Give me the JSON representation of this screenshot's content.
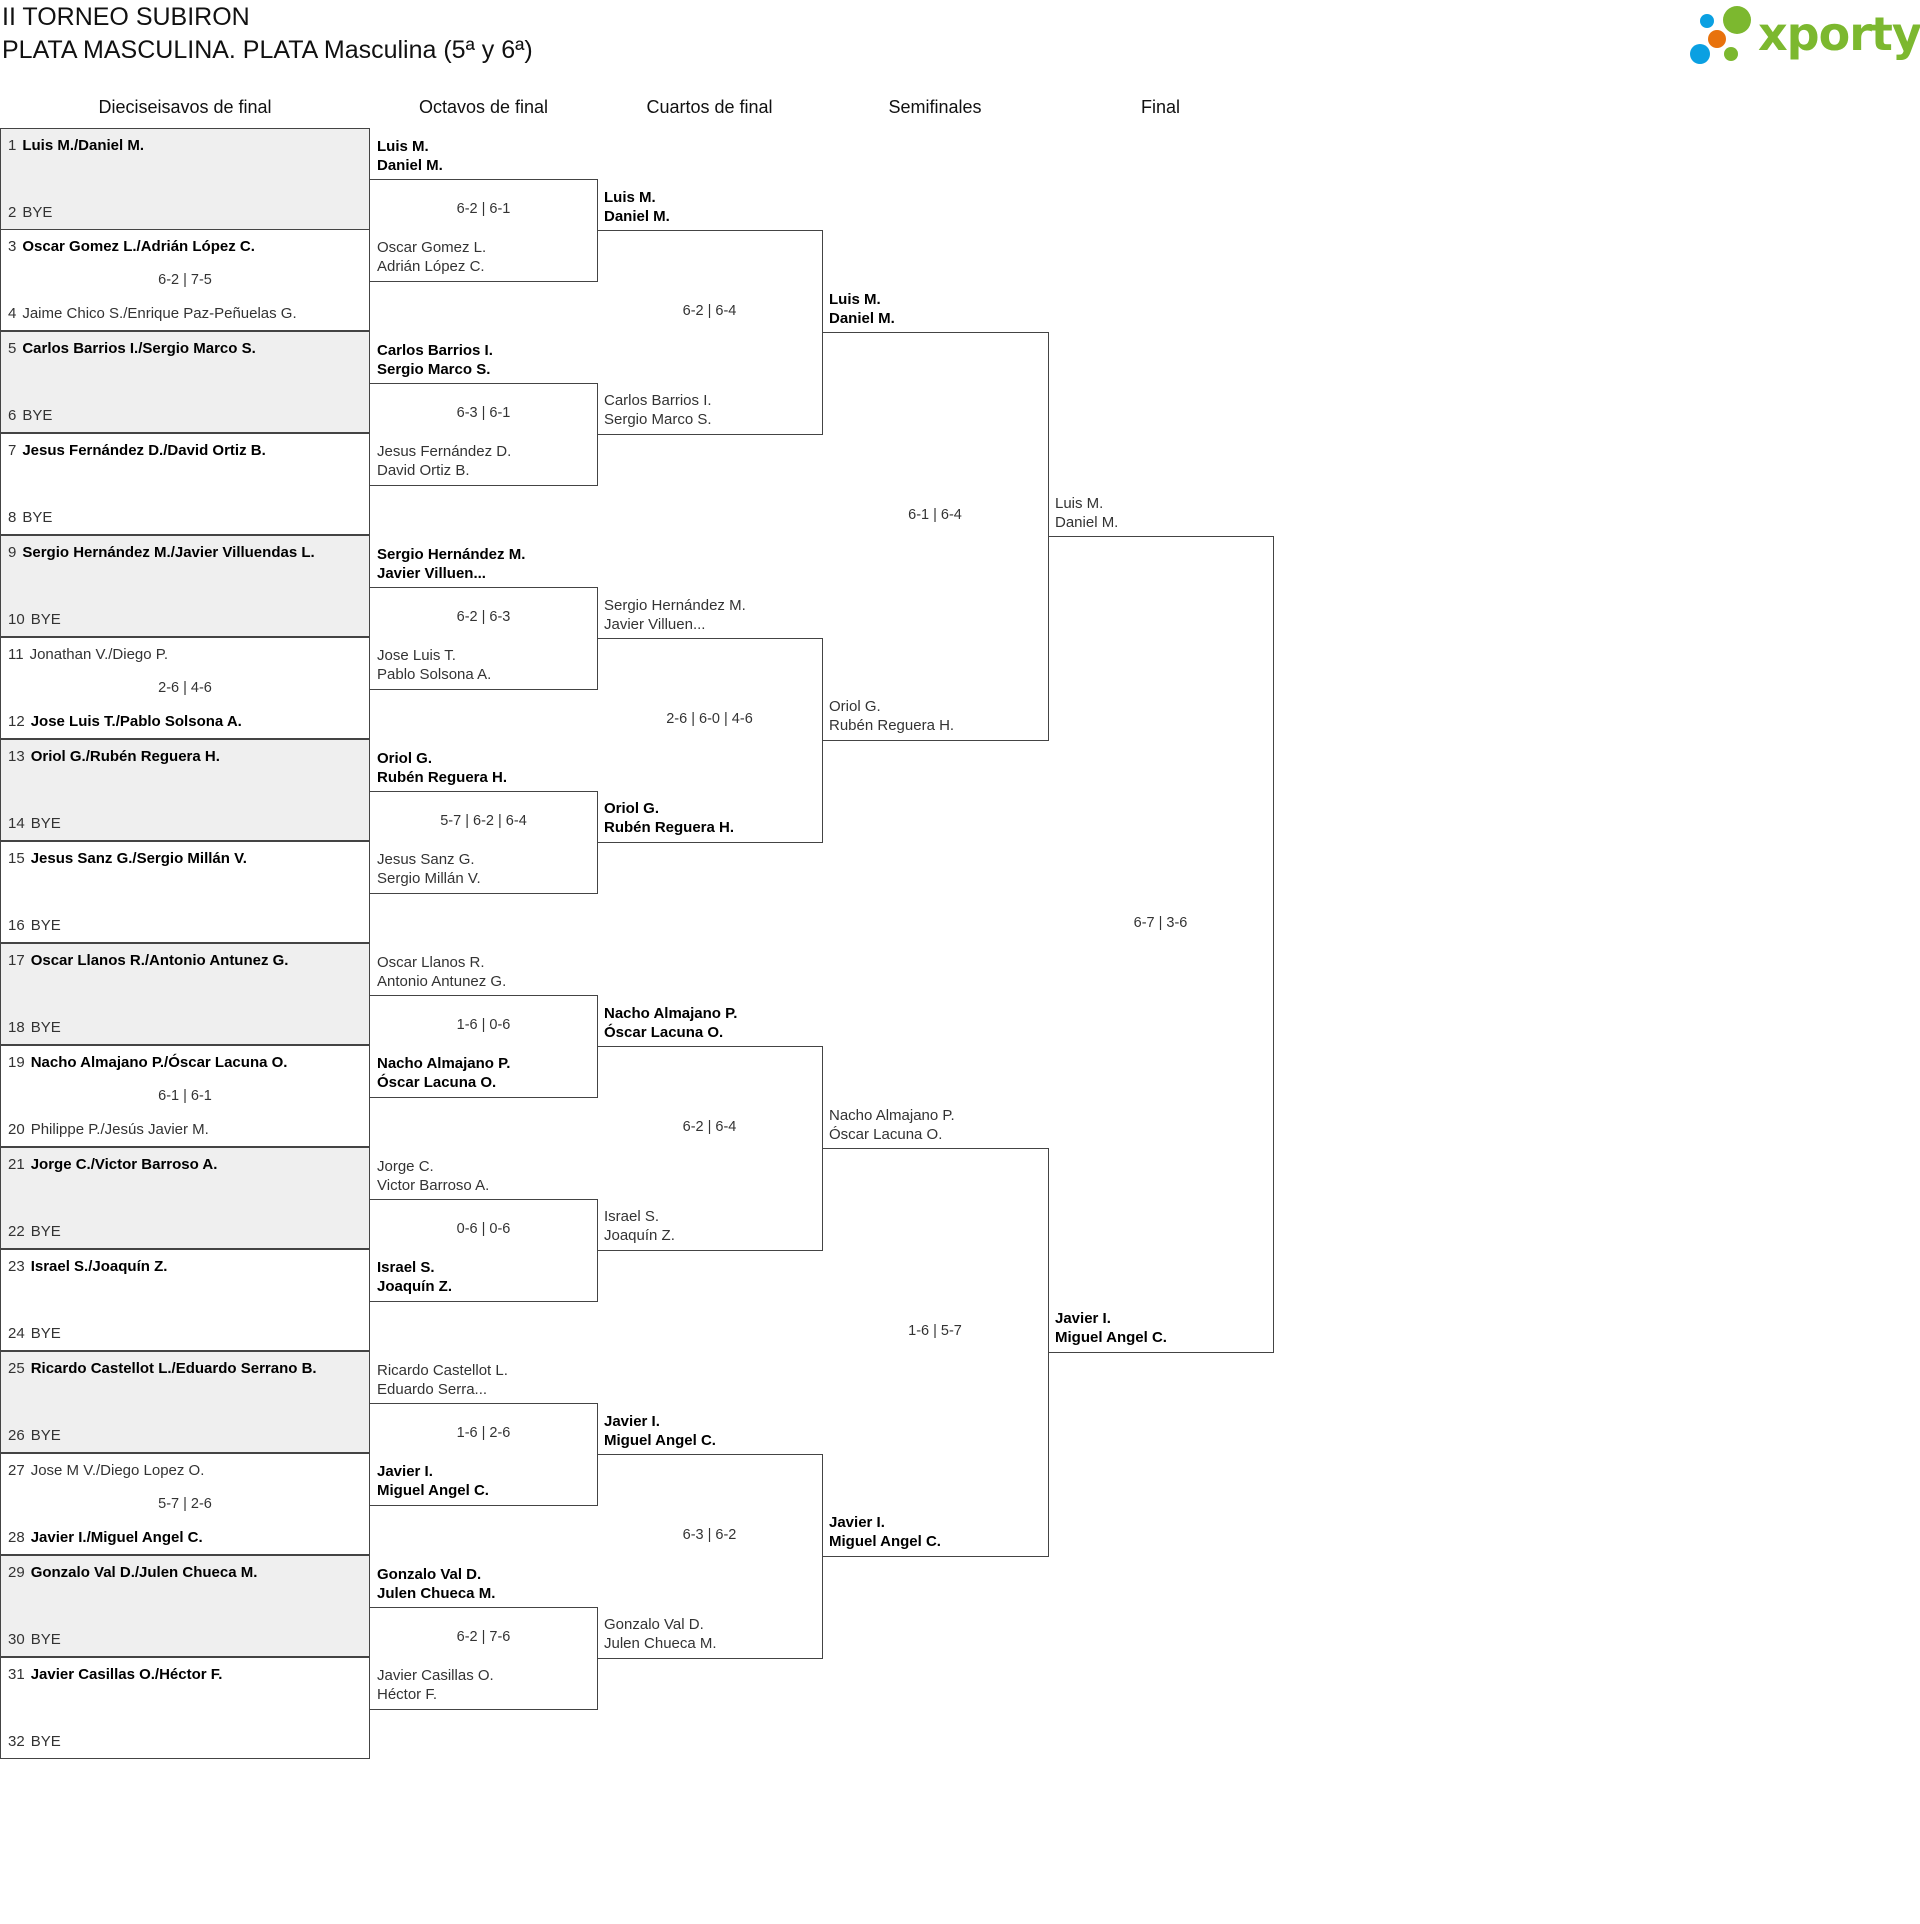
{
  "header": {
    "title": "II TORNEO SUBIRON",
    "subtitle": "PLATA MASCULINA. PLATA Masculina (5ª y 6ª)"
  },
  "logo": {
    "text": "xporty",
    "colors": {
      "green": "#7cb82f",
      "blue": "#0aa0e2",
      "orange": "#e8720c"
    }
  },
  "colors": {
    "grey_row": "#efefef",
    "border": "#444444"
  },
  "round_labels": [
    "Dieciseisavos de final",
    "Octavos de final",
    "Cuartos de final",
    "Semifinales",
    "Final"
  ],
  "first_round": [
    {
      "top": {
        "seed": "1",
        "name": "Luis M./Daniel M.",
        "advanced": true
      },
      "bottom": {
        "seed": "2",
        "name": "BYE",
        "advanced": false
      },
      "score": ""
    },
    {
      "top": {
        "seed": "3",
        "name": "Oscar Gomez L./Adrián López C.",
        "advanced": true
      },
      "bottom": {
        "seed": "4",
        "name": "Jaime Chico S./Enrique Paz-Peñuelas G.",
        "advanced": false
      },
      "score": "6-2 | 7-5"
    },
    {
      "top": {
        "seed": "5",
        "name": "Carlos Barrios I./Sergio Marco S.",
        "advanced": true
      },
      "bottom": {
        "seed": "6",
        "name": "BYE",
        "advanced": false
      },
      "score": ""
    },
    {
      "top": {
        "seed": "7",
        "name": "Jesus Fernández D./David Ortiz B.",
        "advanced": true
      },
      "bottom": {
        "seed": "8",
        "name": "BYE",
        "advanced": false
      },
      "score": ""
    },
    {
      "top": {
        "seed": "9",
        "name": "Sergio Hernández M./Javier Villuendas L.",
        "advanced": true
      },
      "bottom": {
        "seed": "10",
        "name": "BYE",
        "advanced": false
      },
      "score": ""
    },
    {
      "top": {
        "seed": "11",
        "name": "Jonathan V./Diego P.",
        "advanced": false
      },
      "bottom": {
        "seed": "12",
        "name": "Jose Luis T./Pablo Solsona A.",
        "advanced": true
      },
      "score": "2-6 | 4-6"
    },
    {
      "top": {
        "seed": "13",
        "name": "Oriol G./Rubén Reguera H.",
        "advanced": true
      },
      "bottom": {
        "seed": "14",
        "name": "BYE",
        "advanced": false
      },
      "score": ""
    },
    {
      "top": {
        "seed": "15",
        "name": "Jesus Sanz G./Sergio Millán V.",
        "advanced": true
      },
      "bottom": {
        "seed": "16",
        "name": "BYE",
        "advanced": false
      },
      "score": ""
    },
    {
      "top": {
        "seed": "17",
        "name": "Oscar Llanos R./Antonio Antunez G.",
        "advanced": true
      },
      "bottom": {
        "seed": "18",
        "name": "BYE",
        "advanced": false
      },
      "score": ""
    },
    {
      "top": {
        "seed": "19",
        "name": "Nacho Almajano P./Óscar Lacuna O.",
        "advanced": true
      },
      "bottom": {
        "seed": "20",
        "name": "Philippe P./Jesús Javier M.",
        "advanced": false
      },
      "score": "6-1 | 6-1"
    },
    {
      "top": {
        "seed": "21",
        "name": "Jorge C./Victor Barroso A.",
        "advanced": true
      },
      "bottom": {
        "seed": "22",
        "name": "BYE",
        "advanced": false
      },
      "score": ""
    },
    {
      "top": {
        "seed": "23",
        "name": "Israel S./Joaquín Z.",
        "advanced": true
      },
      "bottom": {
        "seed": "24",
        "name": "BYE",
        "advanced": false
      },
      "score": ""
    },
    {
      "top": {
        "seed": "25",
        "name": "Ricardo Castellot L./Eduardo Serrano B.",
        "advanced": true
      },
      "bottom": {
        "seed": "26",
        "name": "BYE",
        "advanced": false
      },
      "score": ""
    },
    {
      "top": {
        "seed": "27",
        "name": "Jose M V./Diego Lopez O.",
        "advanced": false
      },
      "bottom": {
        "seed": "28",
        "name": "Javier I./Miguel Angel C.",
        "advanced": true
      },
      "score": "5-7 | 2-6"
    },
    {
      "top": {
        "seed": "29",
        "name": "Gonzalo Val D./Julen Chueca M.",
        "advanced": true
      },
      "bottom": {
        "seed": "30",
        "name": "BYE",
        "advanced": false
      },
      "score": ""
    },
    {
      "top": {
        "seed": "31",
        "name": "Javier Casillas O./Héctor F.",
        "advanced": true
      },
      "bottom": {
        "seed": "32",
        "name": "BYE",
        "advanced": false
      },
      "score": ""
    }
  ],
  "rounds": [
    {
      "matches": [
        {
          "top": {
            "line1": "Luis M.",
            "line2": "Daniel M.",
            "winner": true
          },
          "bottom": {
            "line1": "Oscar Gomez L.",
            "line2": "Adrián López C.",
            "winner": false
          },
          "score": "6-2 | 6-1"
        },
        {
          "top": {
            "line1": "Carlos Barrios I.",
            "line2": "Sergio Marco S.",
            "winner": true
          },
          "bottom": {
            "line1": "Jesus Fernández D.",
            "line2": "David Ortiz B.",
            "winner": false
          },
          "score": "6-3 | 6-1"
        },
        {
          "top": {
            "line1": "Sergio Hernández M.",
            "line2": "Javier Villuen...",
            "winner": true
          },
          "bottom": {
            "line1": "Jose Luis T.",
            "line2": "Pablo Solsona A.",
            "winner": false
          },
          "score": "6-2 | 6-3"
        },
        {
          "top": {
            "line1": "Oriol G.",
            "line2": "Rubén Reguera H.",
            "winner": true
          },
          "bottom": {
            "line1": "Jesus Sanz G.",
            "line2": "Sergio Millán V.",
            "winner": false
          },
          "score": "5-7 | 6-2 | 6-4"
        },
        {
          "top": {
            "line1": "Oscar Llanos R.",
            "line2": "Antonio Antunez G.",
            "winner": false
          },
          "bottom": {
            "line1": "Nacho Almajano P.",
            "line2": "Óscar Lacuna O.",
            "winner": true
          },
          "score": "1-6 | 0-6"
        },
        {
          "top": {
            "line1": "Jorge C.",
            "line2": "Victor Barroso A.",
            "winner": false
          },
          "bottom": {
            "line1": "Israel S.",
            "line2": "Joaquín Z.",
            "winner": true
          },
          "score": "0-6 | 0-6"
        },
        {
          "top": {
            "line1": "Ricardo Castellot L.",
            "line2": "Eduardo Serra...",
            "winner": false
          },
          "bottom": {
            "line1": "Javier I.",
            "line2": "Miguel Angel C.",
            "winner": true
          },
          "score": "1-6 | 2-6"
        },
        {
          "top": {
            "line1": "Gonzalo Val D.",
            "line2": "Julen Chueca M.",
            "winner": true
          },
          "bottom": {
            "line1": "Javier Casillas O.",
            "line2": "Héctor F.",
            "winner": false
          },
          "score": "6-2 | 7-6"
        }
      ]
    },
    {
      "matches": [
        {
          "top": {
            "line1": "Luis M.",
            "line2": "Daniel M.",
            "winner": true
          },
          "bottom": {
            "line1": "Carlos Barrios I.",
            "line2": "Sergio Marco S.",
            "winner": false
          },
          "score": "6-2 | 6-4"
        },
        {
          "top": {
            "line1": "Sergio Hernández M.",
            "line2": "Javier Villuen...",
            "winner": false
          },
          "bottom": {
            "line1": "Oriol G.",
            "line2": "Rubén Reguera H.",
            "winner": true
          },
          "score": "2-6 | 6-0 | 4-6"
        },
        {
          "top": {
            "line1": "Nacho Almajano P.",
            "line2": "Óscar Lacuna O.",
            "winner": true
          },
          "bottom": {
            "line1": "Israel S.",
            "line2": "Joaquín Z.",
            "winner": false
          },
          "score": "6-2 | 6-4"
        },
        {
          "top": {
            "line1": "Javier I.",
            "line2": "Miguel Angel C.",
            "winner": true
          },
          "bottom": {
            "line1": "Gonzalo Val D.",
            "line2": "Julen Chueca M.",
            "winner": false
          },
          "score": "6-3 | 6-2"
        }
      ]
    },
    {
      "matches": [
        {
          "top": {
            "line1": "Luis M.",
            "line2": "Daniel M.",
            "winner": true
          },
          "bottom": {
            "line1": "Oriol G.",
            "line2": "Rubén Reguera H.",
            "winner": false
          },
          "score": "6-1 | 6-4"
        },
        {
          "top": {
            "line1": "Nacho Almajano P.",
            "line2": "Óscar Lacuna O.",
            "winner": false
          },
          "bottom": {
            "line1": "Javier I.",
            "line2": "Miguel Angel C.",
            "winner": true
          },
          "score": "1-6 | 5-7"
        }
      ]
    },
    {
      "matches": [
        {
          "top": {
            "line1": "Luis M.",
            "line2": "Daniel M.",
            "winner": false
          },
          "bottom": {
            "line1": "Javier I.",
            "line2": "Miguel Angel C.",
            "winner": true
          },
          "score": "6-7 | 3-6"
        }
      ]
    }
  ]
}
